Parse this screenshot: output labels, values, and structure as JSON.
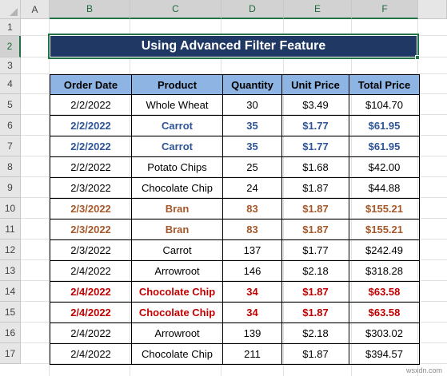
{
  "columns": [
    "A",
    "B",
    "C",
    "D",
    "E",
    "F"
  ],
  "rows": [
    "1",
    "2",
    "3",
    "4",
    "5",
    "6",
    "7",
    "8",
    "9",
    "10",
    "11",
    "12",
    "13",
    "14",
    "15",
    "16",
    "17"
  ],
  "title": "Using Advanced Filter Feature",
  "table": {
    "headers": [
      "Order Date",
      "Product",
      "Quantity",
      "Unit Price",
      "Total Price"
    ],
    "rows": [
      {
        "style": "normal",
        "cells": [
          "2/2/2022",
          "Whole Wheat",
          "30",
          "$3.49",
          "$104.70"
        ]
      },
      {
        "style": "blue",
        "cells": [
          "2/2/2022",
          "Carrot",
          "35",
          "$1.77",
          "$61.95"
        ]
      },
      {
        "style": "blue",
        "cells": [
          "2/2/2022",
          "Carrot",
          "35",
          "$1.77",
          "$61.95"
        ]
      },
      {
        "style": "normal",
        "cells": [
          "2/2/2022",
          "Potato Chips",
          "25",
          "$1.68",
          "$42.00"
        ]
      },
      {
        "style": "normal",
        "cells": [
          "2/3/2022",
          "Chocolate Chip",
          "24",
          "$1.87",
          "$44.88"
        ]
      },
      {
        "style": "brown",
        "cells": [
          "2/3/2022",
          "Bran",
          "83",
          "$1.87",
          "$155.21"
        ]
      },
      {
        "style": "brown",
        "cells": [
          "2/3/2022",
          "Bran",
          "83",
          "$1.87",
          "$155.21"
        ]
      },
      {
        "style": "normal",
        "cells": [
          "2/3/2022",
          "Carrot",
          "137",
          "$1.77",
          "$242.49"
        ]
      },
      {
        "style": "normal",
        "cells": [
          "2/4/2022",
          "Arrowroot",
          "146",
          "$2.18",
          "$318.28"
        ]
      },
      {
        "style": "red",
        "cells": [
          "2/4/2022",
          "Chocolate Chip",
          "34",
          "$1.87",
          "$63.58"
        ]
      },
      {
        "style": "red",
        "cells": [
          "2/4/2022",
          "Chocolate Chip",
          "34",
          "$1.87",
          "$63.58"
        ]
      },
      {
        "style": "normal",
        "cells": [
          "2/4/2022",
          "Arrowroot",
          "139",
          "$2.18",
          "$303.02"
        ]
      },
      {
        "style": "normal",
        "cells": [
          "2/4/2022",
          "Chocolate Chip",
          "211",
          "$1.87",
          "$394.57"
        ]
      }
    ]
  },
  "colors": {
    "title_bg": "#1f3864",
    "header_bg": "#8eb4e3",
    "duplicate_blue": "#2f5597",
    "duplicate_brown": "#a5582a",
    "duplicate_red": "#c00000",
    "selection": "#217346"
  },
  "watermark": "wsxdn.com"
}
